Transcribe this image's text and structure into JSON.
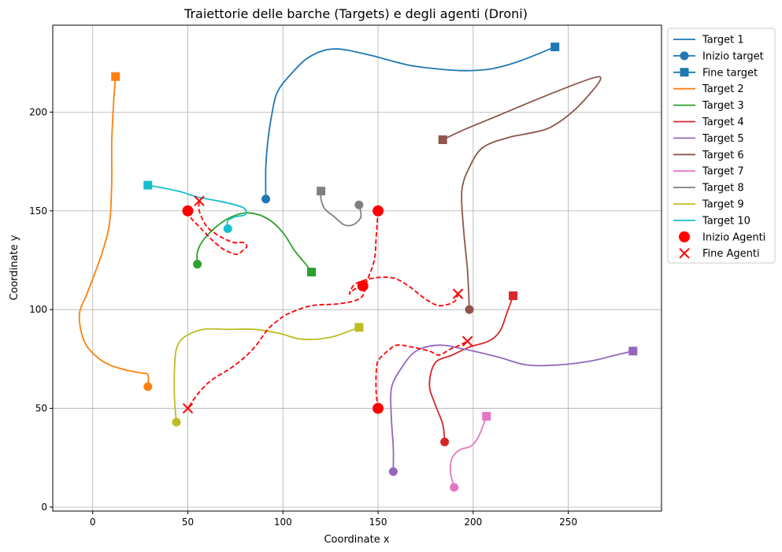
{
  "chart_data": {
    "type": "line",
    "title": "Traiettorie delle barche (Targets) e degli agenti (Droni)",
    "xlabel": "Coordinate x",
    "ylabel": "Coordinate y",
    "xlim": [
      -21,
      299
    ],
    "ylim": [
      -2,
      244
    ],
    "xticks": [
      0,
      50,
      100,
      150,
      200,
      250
    ],
    "yticks": [
      0,
      50,
      100,
      150,
      200
    ],
    "grid": true,
    "legend": {
      "placement": "outside-top-right",
      "entries": [
        {
          "label": "Target 1",
          "kind": "line",
          "color": "#1f77b4"
        },
        {
          "label": "Inizio target",
          "kind": "line-circle",
          "color": "#1f77b4"
        },
        {
          "label": "Fine target",
          "kind": "line-square",
          "color": "#1f77b4"
        },
        {
          "label": "Target 2",
          "kind": "line",
          "color": "#ff7f0e"
        },
        {
          "label": "Target 3",
          "kind": "line",
          "color": "#2ca02c"
        },
        {
          "label": "Target 4",
          "kind": "line",
          "color": "#d62728"
        },
        {
          "label": "Target 5",
          "kind": "line",
          "color": "#9467bd"
        },
        {
          "label": "Target 6",
          "kind": "line",
          "color": "#8c564b"
        },
        {
          "label": "Target 7",
          "kind": "line",
          "color": "#e377c2"
        },
        {
          "label": "Target 8",
          "kind": "line",
          "color": "#7f7f7f"
        },
        {
          "label": "Target 9",
          "kind": "line",
          "color": "#bcbd22"
        },
        {
          "label": "Target 10",
          "kind": "line",
          "color": "#17becf"
        },
        {
          "label": "Inizio Agenti",
          "kind": "big-circle",
          "color": "#ff0000"
        },
        {
          "label": "Fine Agenti",
          "kind": "x",
          "color": "#ff0000"
        }
      ]
    },
    "targets": [
      {
        "name": "Target 1",
        "color": "#1f77b4",
        "points": [
          [
            91,
            156
          ],
          [
            91,
            172
          ],
          [
            92,
            185
          ],
          [
            94,
            198
          ],
          [
            97,
            210
          ],
          [
            104,
            219
          ],
          [
            114,
            228
          ],
          [
            127,
            232
          ],
          [
            145,
            229
          ],
          [
            165,
            224
          ],
          [
            180,
            222
          ],
          [
            195,
            221
          ],
          [
            210,
            222
          ],
          [
            225,
            226
          ],
          [
            243,
            233
          ]
        ]
      },
      {
        "name": "Target 2",
        "color": "#ff7f0e",
        "points": [
          [
            29,
            61
          ],
          [
            29,
            67
          ],
          [
            25,
            68
          ],
          [
            15,
            70
          ],
          [
            5,
            74
          ],
          [
            -4,
            83
          ],
          [
            -7,
            97
          ],
          [
            -3,
            108
          ],
          [
            1,
            118
          ],
          [
            6,
            132
          ],
          [
            9,
            145
          ],
          [
            10,
            165
          ],
          [
            10,
            185
          ],
          [
            11,
            205
          ],
          [
            12,
            218
          ]
        ]
      },
      {
        "name": "Target 3",
        "color": "#2ca02c",
        "points": [
          [
            55,
            123
          ],
          [
            55,
            129
          ],
          [
            58,
            135
          ],
          [
            65,
            142
          ],
          [
            73,
            147
          ],
          [
            82,
            149
          ],
          [
            92,
            146
          ],
          [
            100,
            139
          ],
          [
            106,
            130
          ],
          [
            112,
            123
          ],
          [
            115,
            119
          ]
        ]
      },
      {
        "name": "Target 4",
        "color": "#d62728",
        "points": [
          [
            185,
            33
          ],
          [
            184,
            42
          ],
          [
            180,
            52
          ],
          [
            177,
            62
          ],
          [
            180,
            73
          ],
          [
            189,
            77
          ],
          [
            198,
            81
          ],
          [
            208,
            84
          ],
          [
            214,
            89
          ],
          [
            218,
            99
          ],
          [
            221,
            107
          ]
        ]
      },
      {
        "name": "Target 5",
        "color": "#9467bd",
        "points": [
          [
            158,
            18
          ],
          [
            158,
            30
          ],
          [
            157,
            45
          ],
          [
            157,
            60
          ],
          [
            162,
            70
          ],
          [
            170,
            79
          ],
          [
            182,
            82
          ],
          [
            195,
            80
          ],
          [
            213,
            76
          ],
          [
            228,
            72
          ],
          [
            245,
            72
          ],
          [
            262,
            74
          ],
          [
            275,
            77
          ],
          [
            284,
            79
          ]
        ]
      },
      {
        "name": "Target 6",
        "color": "#8c564b",
        "points": [
          [
            198,
            100
          ],
          [
            197,
            120
          ],
          [
            195,
            140
          ],
          [
            194,
            160
          ],
          [
            198,
            172
          ],
          [
            205,
            182
          ],
          [
            218,
            187
          ],
          [
            228,
            189
          ],
          [
            240,
            192
          ],
          [
            252,
            200
          ],
          [
            262,
            210
          ],
          [
            267,
            217
          ],
          [
            262,
            217
          ],
          [
            240,
            209
          ],
          [
            215,
            199
          ],
          [
            195,
            191
          ],
          [
            184,
            186
          ]
        ]
      },
      {
        "name": "Target 7",
        "color": "#e377c2",
        "points": [
          [
            190,
            10
          ],
          [
            188,
            18
          ],
          [
            189,
            25
          ],
          [
            193,
            29
          ],
          [
            199,
            31
          ],
          [
            203,
            36
          ],
          [
            207,
            46
          ]
        ]
      },
      {
        "name": "Target 8",
        "color": "#7f7f7f",
        "points": [
          [
            140,
            153
          ],
          [
            141,
            147
          ],
          [
            137,
            143
          ],
          [
            132,
            143
          ],
          [
            127,
            147
          ],
          [
            122,
            151
          ],
          [
            120,
            156
          ],
          [
            120,
            160
          ]
        ]
      },
      {
        "name": "Target 9",
        "color": "#bcbd22",
        "points": [
          [
            44,
            43
          ],
          [
            43,
            55
          ],
          [
            43,
            70
          ],
          [
            44,
            80
          ],
          [
            48,
            86
          ],
          [
            58,
            90
          ],
          [
            70,
            90
          ],
          [
            85,
            90
          ],
          [
            98,
            88
          ],
          [
            110,
            85
          ],
          [
            125,
            86
          ],
          [
            140,
            91
          ]
        ]
      },
      {
        "name": "Target 10",
        "color": "#17becf",
        "points": [
          [
            71,
            141
          ],
          [
            71,
            145
          ],
          [
            75,
            147
          ],
          [
            80,
            148
          ],
          [
            80,
            151
          ],
          [
            75,
            153
          ],
          [
            66,
            155
          ],
          [
            55,
            157
          ],
          [
            45,
            160
          ],
          [
            29,
            163
          ]
        ]
      }
    ],
    "agents": [
      {
        "points": [
          [
            50,
            150
          ],
          [
            52,
            146
          ],
          [
            56,
            142
          ],
          [
            59,
            139
          ],
          [
            63,
            135
          ],
          [
            68,
            131
          ],
          [
            72,
            129
          ],
          [
            76,
            128
          ],
          [
            79,
            130
          ],
          [
            81,
            132
          ],
          [
            79,
            134
          ],
          [
            74,
            134
          ],
          [
            67,
            137
          ],
          [
            60,
            142
          ],
          [
            56,
            150
          ],
          [
            56,
            155
          ]
        ]
      },
      {
        "points": [
          [
            150,
            150
          ],
          [
            149,
            137
          ],
          [
            148,
            125
          ],
          [
            144,
            114
          ],
          [
            141,
            106
          ],
          [
            130,
            103
          ],
          [
            115,
            102
          ],
          [
            103,
            98
          ],
          [
            98,
            95
          ],
          [
            92,
            90
          ],
          [
            86,
            82
          ],
          [
            80,
            76
          ],
          [
            72,
            70
          ],
          [
            62,
            64
          ],
          [
            55,
            57
          ],
          [
            50,
            50
          ]
        ]
      },
      {
        "points": [
          [
            150,
            50
          ],
          [
            149,
            58
          ],
          [
            149,
            68
          ],
          [
            150,
            74
          ],
          [
            155,
            79
          ],
          [
            160,
            82
          ],
          [
            168,
            81
          ],
          [
            177,
            79
          ],
          [
            182,
            77
          ],
          [
            188,
            80
          ],
          [
            193,
            82
          ],
          [
            197,
            84
          ]
        ]
      },
      {
        "points": [
          [
            142,
            112
          ],
          [
            137,
            110
          ],
          [
            135,
            108
          ],
          [
            138,
            113
          ],
          [
            148,
            116
          ],
          [
            158,
            116
          ],
          [
            166,
            112
          ],
          [
            174,
            106
          ],
          [
            182,
            102
          ],
          [
            190,
            104
          ],
          [
            192,
            108
          ]
        ]
      }
    ]
  }
}
